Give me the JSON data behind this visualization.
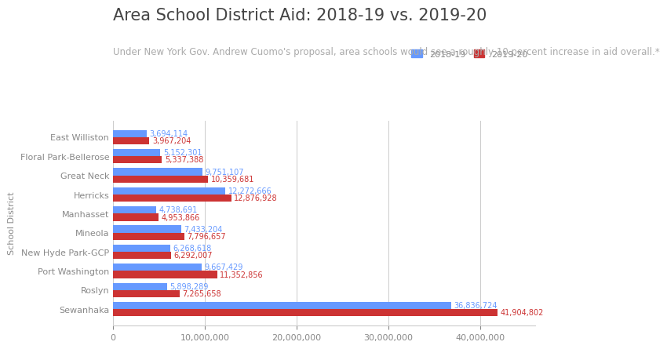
{
  "title": "Area School District Aid: 2018-19 vs. 2019-20",
  "subtitle": "Under New York Gov. Andrew Cuomo's proposal, area schools would see a roughly 10 percent increase in aid overall.*",
  "ylabel": "School District",
  "legend_labels": [
    "2018-19",
    "2019-20"
  ],
  "districts": [
    "East Williston",
    "Floral Park-Bellerose",
    "Great Neck",
    "Herricks",
    "Manhasset",
    "Mineola",
    "New Hyde Park-GCP",
    "Port Washington",
    "Roslyn",
    "Sewanhaka"
  ],
  "values_2018": [
    3694114,
    5152301,
    9751107,
    12272666,
    4738691,
    7433204,
    6268618,
    9667429,
    5898289,
    36836724
  ],
  "values_2019": [
    3967204,
    5337388,
    10359681,
    12876928,
    4953866,
    7796657,
    6292007,
    11352856,
    7265658,
    41904802
  ],
  "color_2018": "#6699ff",
  "color_2019": "#cc3333",
  "title_fontsize": 15,
  "subtitle_fontsize": 8.5,
  "label_fontsize": 8,
  "value_fontsize": 7,
  "bar_height": 0.38,
  "xlim": [
    0,
    46000000
  ],
  "background_color": "#ffffff",
  "grid_color": "#cccccc",
  "title_color": "#444444",
  "subtitle_color": "#aaaaaa",
  "tick_label_color": "#888888"
}
